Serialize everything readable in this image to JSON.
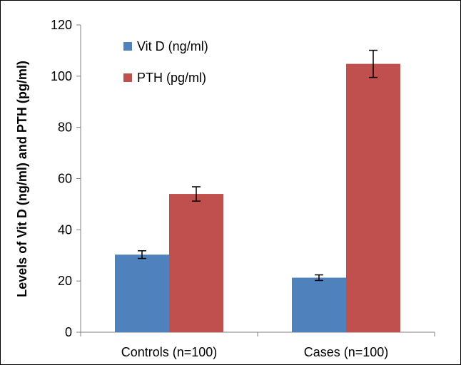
{
  "chart_data": {
    "type": "bar",
    "title": "",
    "xlabel": "",
    "ylabel": "Levels  of Vit D (ng/ml) and PTH (pg/ml)",
    "categories": [
      "Controls (n=100)",
      "Cases (n=100)"
    ],
    "series": [
      {
        "name": "Vit D (ng/ml)",
        "color": "#4F81BD",
        "values": [
          30.3,
          21.3
        ],
        "errors": [
          1.5,
          1.1
        ]
      },
      {
        "name": "PTH (pg/ml)",
        "color": "#C0504D",
        "values": [
          54.0,
          104.8
        ],
        "errors": [
          2.8,
          5.3
        ]
      }
    ],
    "ylim": [
      0,
      120
    ],
    "yticks": [
      0,
      20,
      40,
      60,
      80,
      100,
      120
    ],
    "grid": false,
    "legend": "top-left"
  }
}
